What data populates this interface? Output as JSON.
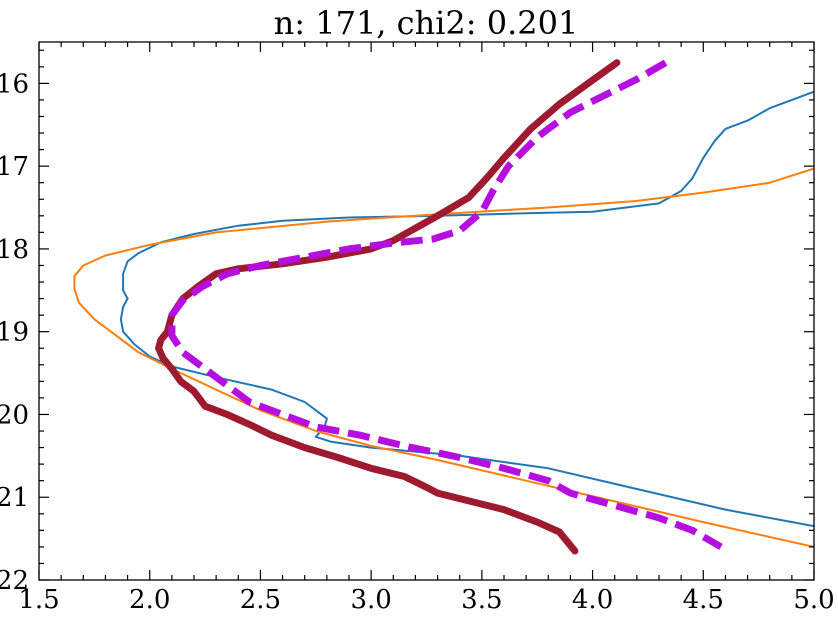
{
  "chart_data": {
    "type": "line",
    "title": "n: 171, chi2: 0.201",
    "xlabel": "",
    "ylabel": "",
    "xlim": [
      1.5,
      5.0
    ],
    "ylim": [
      22.0,
      15.5
    ],
    "y_inverted": true,
    "x_ticks": [
      "1.5",
      "2.0",
      "2.5",
      "3.0",
      "3.5",
      "4.0",
      "4.5",
      "5.0"
    ],
    "y_ticks": [
      "16",
      "17",
      "18",
      "19",
      "20",
      "21",
      "22"
    ],
    "grid": false,
    "legend": "none",
    "colors": {
      "blue": "#1f77b4",
      "orange": "#ff7f0e",
      "darkred": "#9e1a2e",
      "magenta": "#b50fe0"
    },
    "series": [
      {
        "color": "#1f77b4",
        "style": "solid-thin",
        "points": [
          [
            5.0,
            16.1
          ],
          [
            4.9,
            16.2
          ],
          [
            4.8,
            16.3
          ],
          [
            4.7,
            16.45
          ],
          [
            4.6,
            16.55
          ],
          [
            4.55,
            16.7
          ],
          [
            4.5,
            16.9
          ],
          [
            4.48,
            17.0
          ],
          [
            4.45,
            17.15
          ],
          [
            4.4,
            17.3
          ],
          [
            4.3,
            17.45
          ],
          [
            4.0,
            17.55
          ],
          [
            3.7,
            17.57
          ],
          [
            3.3,
            17.6
          ],
          [
            2.9,
            17.62
          ],
          [
            2.6,
            17.66
          ],
          [
            2.4,
            17.72
          ],
          [
            2.2,
            17.82
          ],
          [
            2.05,
            17.92
          ],
          [
            1.95,
            18.05
          ],
          [
            1.9,
            18.15
          ],
          [
            1.88,
            18.3
          ],
          [
            1.88,
            18.5
          ],
          [
            1.9,
            18.6
          ],
          [
            1.88,
            18.7
          ],
          [
            1.87,
            18.85
          ],
          [
            1.88,
            19.0
          ],
          [
            1.93,
            19.15
          ],
          [
            2.0,
            19.3
          ],
          [
            2.1,
            19.42
          ],
          [
            2.3,
            19.55
          ],
          [
            2.55,
            19.7
          ],
          [
            2.7,
            19.85
          ],
          [
            2.8,
            20.05
          ],
          [
            2.79,
            20.15
          ],
          [
            2.75,
            20.27
          ],
          [
            2.82,
            20.33
          ],
          [
            3.0,
            20.4
          ],
          [
            3.4,
            20.5
          ],
          [
            3.8,
            20.65
          ],
          [
            4.2,
            20.9
          ],
          [
            4.6,
            21.15
          ],
          [
            5.0,
            21.35
          ]
        ]
      },
      {
        "color": "#ff7f0e",
        "style": "solid-thin",
        "points": [
          [
            5.0,
            17.03
          ],
          [
            4.8,
            17.2
          ],
          [
            4.5,
            17.32
          ],
          [
            4.2,
            17.42
          ],
          [
            3.8,
            17.5
          ],
          [
            3.3,
            17.58
          ],
          [
            2.8,
            17.67
          ],
          [
            2.3,
            17.8
          ],
          [
            2.0,
            17.95
          ],
          [
            1.8,
            18.08
          ],
          [
            1.7,
            18.2
          ],
          [
            1.66,
            18.33
          ],
          [
            1.66,
            18.48
          ],
          [
            1.68,
            18.65
          ],
          [
            1.75,
            18.85
          ],
          [
            1.85,
            19.05
          ],
          [
            1.95,
            19.25
          ],
          [
            2.1,
            19.45
          ],
          [
            2.3,
            19.7
          ],
          [
            2.5,
            19.95
          ],
          [
            2.75,
            20.2
          ],
          [
            3.0,
            20.38
          ],
          [
            3.3,
            20.55
          ],
          [
            3.7,
            20.8
          ],
          [
            4.1,
            21.05
          ],
          [
            4.5,
            21.3
          ],
          [
            5.0,
            21.6
          ]
        ]
      },
      {
        "color": "#9e1a2e",
        "style": "solid-thick",
        "points": [
          [
            4.11,
            15.75
          ],
          [
            3.98,
            16.0
          ],
          [
            3.85,
            16.25
          ],
          [
            3.72,
            16.55
          ],
          [
            3.6,
            16.9
          ],
          [
            3.52,
            17.15
          ],
          [
            3.44,
            17.38
          ],
          [
            3.3,
            17.6
          ],
          [
            3.2,
            17.75
          ],
          [
            3.1,
            17.9
          ],
          [
            3.0,
            18.0
          ],
          [
            2.8,
            18.1
          ],
          [
            2.6,
            18.18
          ],
          [
            2.4,
            18.24
          ],
          [
            2.3,
            18.3
          ],
          [
            2.22,
            18.45
          ],
          [
            2.15,
            18.6
          ],
          [
            2.1,
            18.8
          ],
          [
            2.08,
            19.0
          ],
          [
            2.05,
            19.1
          ],
          [
            2.04,
            19.2
          ],
          [
            2.06,
            19.32
          ],
          [
            2.1,
            19.45
          ],
          [
            2.14,
            19.6
          ],
          [
            2.2,
            19.72
          ],
          [
            2.25,
            19.9
          ],
          [
            2.35,
            20.0
          ],
          [
            2.45,
            20.12
          ],
          [
            2.55,
            20.25
          ],
          [
            2.7,
            20.4
          ],
          [
            2.85,
            20.52
          ],
          [
            3.0,
            20.65
          ],
          [
            3.15,
            20.75
          ],
          [
            3.25,
            20.88
          ],
          [
            3.3,
            20.95
          ],
          [
            3.45,
            21.05
          ],
          [
            3.6,
            21.15
          ],
          [
            3.75,
            21.3
          ],
          [
            3.85,
            21.42
          ],
          [
            3.92,
            21.65
          ]
        ]
      },
      {
        "color": "#b50fe0",
        "style": "dashed-thick",
        "points": [
          [
            4.33,
            15.75
          ],
          [
            4.2,
            15.95
          ],
          [
            4.05,
            16.15
          ],
          [
            3.9,
            16.35
          ],
          [
            3.75,
            16.65
          ],
          [
            3.62,
            17.0
          ],
          [
            3.55,
            17.3
          ],
          [
            3.5,
            17.55
          ],
          [
            3.4,
            17.78
          ],
          [
            3.28,
            17.88
          ],
          [
            3.1,
            17.93
          ],
          [
            2.9,
            18.0
          ],
          [
            2.7,
            18.1
          ],
          [
            2.5,
            18.2
          ],
          [
            2.35,
            18.3
          ],
          [
            2.24,
            18.45
          ],
          [
            2.15,
            18.62
          ],
          [
            2.1,
            18.8
          ],
          [
            2.1,
            19.05
          ],
          [
            2.15,
            19.25
          ],
          [
            2.25,
            19.45
          ],
          [
            2.35,
            19.65
          ],
          [
            2.45,
            19.85
          ],
          [
            2.6,
            20.0
          ],
          [
            2.75,
            20.15
          ],
          [
            2.95,
            20.25
          ],
          [
            3.15,
            20.38
          ],
          [
            3.4,
            20.52
          ],
          [
            3.6,
            20.65
          ],
          [
            3.8,
            20.8
          ],
          [
            3.9,
            20.95
          ],
          [
            4.1,
            21.1
          ],
          [
            4.3,
            21.25
          ],
          [
            4.45,
            21.4
          ],
          [
            4.58,
            21.6
          ]
        ]
      }
    ]
  }
}
